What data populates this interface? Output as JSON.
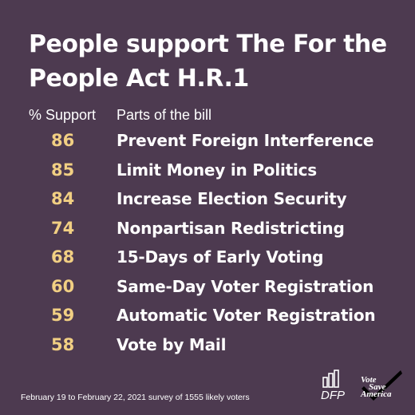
{
  "title_lines": [
    "People support The For the",
    "People Act H.R.1"
  ],
  "column_headers": {
    "support": "% Support",
    "parts": "Parts of the bill"
  },
  "chart_data": {
    "type": "table",
    "title": "People support The For the People Act H.R.1",
    "columns": [
      "% Support",
      "Parts of the bill"
    ],
    "rows": [
      {
        "value": 86,
        "label": "Prevent Foreign Interference"
      },
      {
        "value": 85,
        "label": "Limit Money in Politics"
      },
      {
        "value": 84,
        "label": "Increase Election Security"
      },
      {
        "value": 74,
        "label": "Nonpartisan Redistricting"
      },
      {
        "value": 68,
        "label": "15-Days of Early Voting"
      },
      {
        "value": 60,
        "label": "Same-Day Voter Registration"
      },
      {
        "value": 59,
        "label": "Automatic Voter Registration"
      },
      {
        "value": 58,
        "label": "Vote by Mail"
      }
    ]
  },
  "footnote": "February 19 to February 22, 2021 survey of 1555 likely voters",
  "logos": {
    "dfp": {
      "text": "DFP",
      "icon": "bar-chart-icon"
    },
    "vote_save_america": {
      "lines": [
        "Vote",
        "Save",
        "America"
      ],
      "icon": "checkmark-icon"
    }
  },
  "colors": {
    "background": "#4d3a50",
    "value": "#f1cf83",
    "text": "#ffffff"
  }
}
